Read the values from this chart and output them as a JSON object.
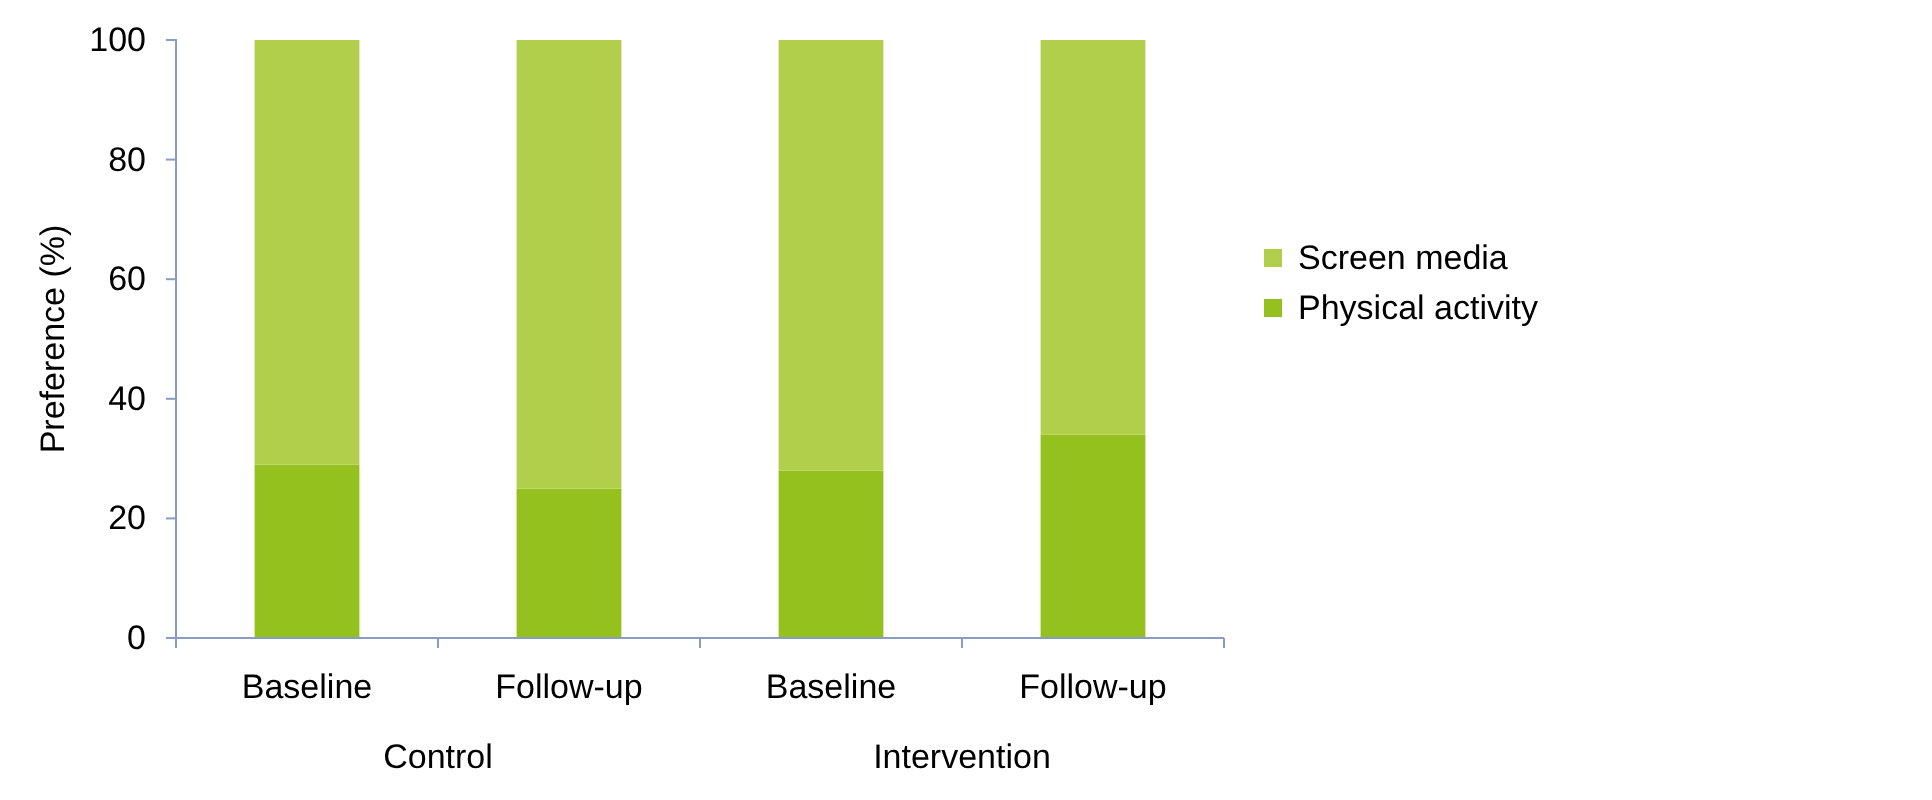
{
  "chart_data": {
    "type": "bar",
    "stacked": true,
    "ylabel": "Preference (%)",
    "categories": [
      "Baseline",
      "Follow-up",
      "Baseline",
      "Follow-up"
    ],
    "annotations": [
      "Control",
      "Intervention"
    ],
    "series": [
      {
        "name": "Physical activity",
        "color": "#95c11f",
        "values": [
          29,
          25,
          28,
          34
        ]
      },
      {
        "name": "Screen media",
        "color": "#b1cf4a",
        "values": [
          71,
          75,
          72,
          66
        ]
      }
    ],
    "ylim": [
      0,
      100
    ],
    "yticks": [
      0,
      20,
      40,
      60,
      80,
      100
    ],
    "grid": false,
    "legend": "right"
  }
}
